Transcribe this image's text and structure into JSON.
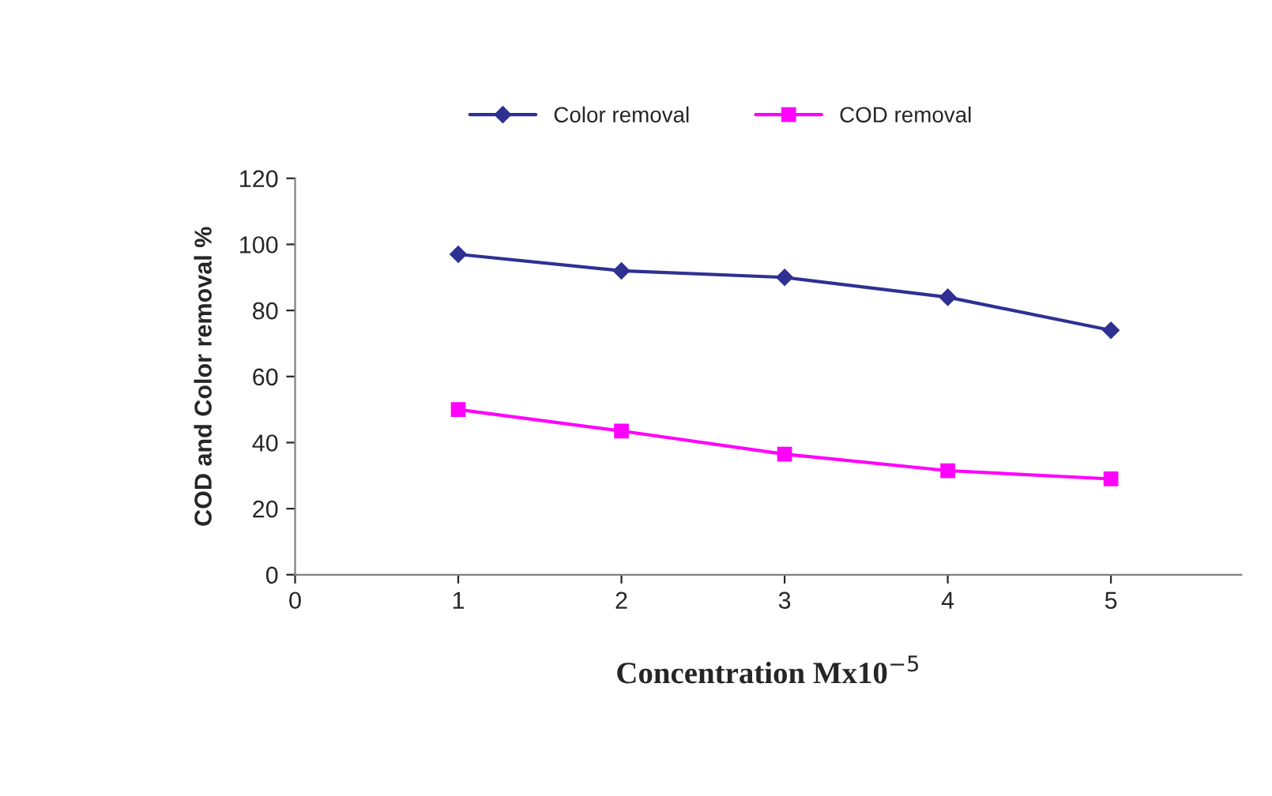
{
  "chart_data": {
    "type": "line",
    "xlabel": "Concentration Mx10$^{−5}$",
    "ylabel": "COD and Color removal %",
    "x": [
      1,
      2,
      3,
      4,
      5
    ],
    "series": [
      {
        "name": "Color removal",
        "color": "#2e3192",
        "values": [
          97,
          92,
          90,
          84,
          74
        ],
        "marker": "diamond"
      },
      {
        "name": "COD removal",
        "color": "#ff00ff",
        "values": [
          50,
          43.5,
          36.5,
          31.5,
          29
        ],
        "marker": "square"
      }
    ],
    "xlim": [
      0,
      5.8
    ],
    "xticks": [
      0,
      1,
      2,
      3,
      4,
      5
    ],
    "ylim": [
      0,
      120
    ],
    "yticks": [
      0,
      20,
      40,
      60,
      80,
      100,
      120
    ],
    "grid": false,
    "legend": "top",
    "line_style": "solid"
  }
}
